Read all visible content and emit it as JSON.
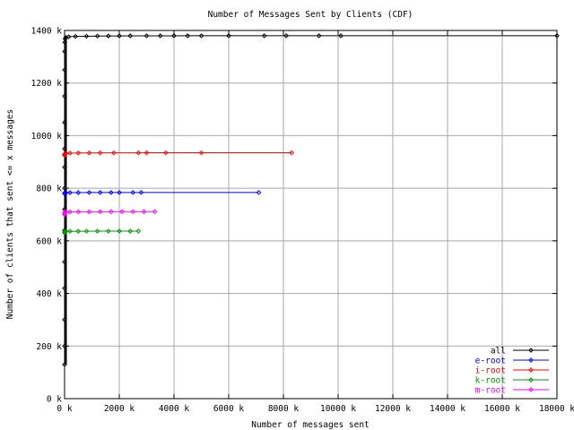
{
  "chart_data": {
    "type": "line",
    "title": "Number of Messages Sent by Clients (CDF)",
    "xlabel": "Number of messages sent",
    "ylabel": "Number of clients that sent <= x messages",
    "xlim": [
      0,
      18000000
    ],
    "ylim": [
      0,
      1400000
    ],
    "x_ticks": [
      0,
      2000000,
      4000000,
      6000000,
      8000000,
      10000000,
      12000000,
      14000000,
      16000000,
      18000000
    ],
    "x_tick_labels": [
      "0 k",
      "2000 k",
      "4000 k",
      "6000 k",
      "8000 k",
      "10000 k",
      "12000 k",
      "14000 k",
      "16000 k",
      "18000 k"
    ],
    "y_ticks": [
      0,
      200000,
      400000,
      600000,
      800000,
      1000000,
      1200000,
      1400000
    ],
    "y_tick_labels": [
      "0 k",
      "200 k",
      "400 k",
      "600 k",
      "800 k",
      "1000 k",
      "1200 k",
      "1400 k"
    ],
    "grid": true,
    "legend": "bottom-right",
    "series": [
      {
        "name": "all",
        "color": "#000000",
        "x": [
          1,
          2,
          3,
          5,
          8,
          15,
          30,
          60,
          100,
          200,
          400,
          800,
          1500,
          3000,
          8000,
          20000,
          50000,
          150000,
          400000,
          800000,
          1200000,
          1600000,
          2000000,
          2400000,
          3000000,
          3500000,
          4000000,
          4500000,
          5000000,
          6000000,
          7300000,
          8100000,
          9300000,
          10100000,
          18000000
        ],
        "y": [
          130000,
          200000,
          300000,
          420000,
          520000,
          640000,
          720000,
          800000,
          880000,
          950000,
          1050000,
          1150000,
          1250000,
          1320000,
          1355000,
          1368000,
          1373000,
          1376000,
          1377500,
          1378000,
          1378500,
          1379000,
          1379300,
          1379500,
          1379650,
          1379700,
          1379750,
          1379800,
          1379830,
          1379860,
          1379900,
          1379930,
          1379960,
          1379980,
          1380000
        ]
      },
      {
        "name": "e-root",
        "color": "#0000ff",
        "x": [
          1,
          20,
          500,
          50000,
          200000,
          500000,
          900000,
          1300000,
          1700000,
          2000000,
          2500000,
          2800000,
          7100000
        ],
        "y": [
          780000,
          781000,
          782000,
          783000,
          783300,
          783500,
          783700,
          783800,
          783900,
          783950,
          783980,
          783990,
          784000
        ]
      },
      {
        "name": "i-root",
        "color": "#ff0000",
        "x": [
          1,
          20,
          500,
          50000,
          200000,
          500000,
          900000,
          1300000,
          1800000,
          2700000,
          3000000,
          3700000,
          5000000,
          8300000
        ],
        "y": [
          925000,
          928000,
          930000,
          933000,
          933500,
          934000,
          934300,
          934500,
          934700,
          934800,
          934850,
          934900,
          934950,
          935000
        ]
      },
      {
        "name": "k-root",
        "color": "#009900",
        "x": [
          1,
          20,
          500,
          50000,
          200000,
          500000,
          800000,
          1200000,
          1600000,
          2000000,
          2400000,
          2700000
        ],
        "y": [
          630000,
          632000,
          634000,
          636000,
          636300,
          636500,
          636700,
          636800,
          636900,
          636950,
          636980,
          637000
        ]
      },
      {
        "name": "m-root",
        "color": "#ff00ff",
        "x": [
          1,
          20,
          500,
          50000,
          200000,
          500000,
          900000,
          1300000,
          1700000,
          2100000,
          2500000,
          2900000,
          3300000
        ],
        "y": [
          700000,
          704000,
          708000,
          710000,
          710300,
          710500,
          710700,
          710800,
          710900,
          710950,
          710970,
          710990,
          711000
        ]
      }
    ]
  }
}
